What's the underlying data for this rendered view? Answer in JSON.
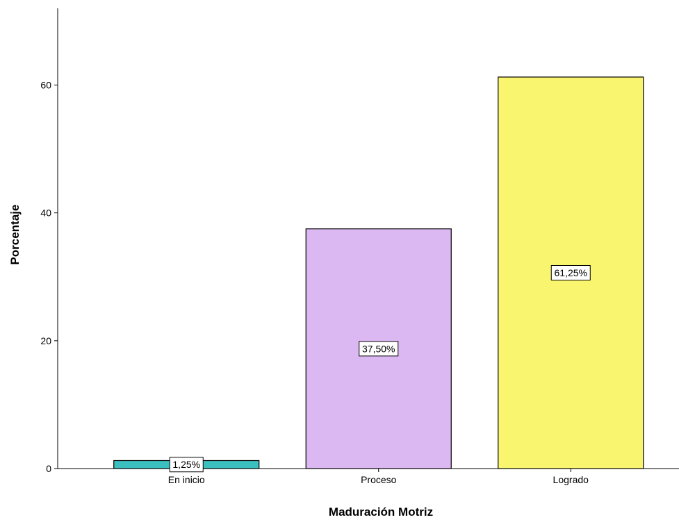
{
  "chart_data": {
    "type": "bar",
    "title": "",
    "xlabel": "Maduración Motriz",
    "ylabel": "Porcentaje",
    "categories": [
      "En inicio",
      "Proceso",
      "Logrado"
    ],
    "values": [
      1.25,
      37.5,
      61.25
    ],
    "data_labels": [
      "1,25%",
      "37,50%",
      "61,25%"
    ],
    "colors": [
      "#3cbfbf",
      "#dcb8f2",
      "#f9f56e"
    ],
    "ylim": [
      0,
      72
    ],
    "yticks": [
      0,
      20,
      40,
      60
    ],
    "grid": false,
    "legend": "none"
  }
}
